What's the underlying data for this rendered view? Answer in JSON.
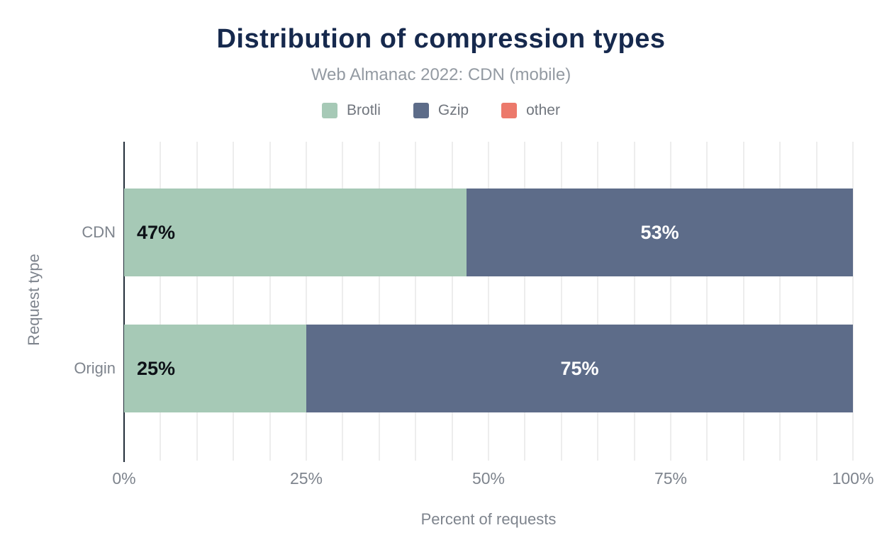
{
  "header": {
    "title": "Distribution of compression types",
    "subtitle": "Web Almanac 2022: CDN (mobile)"
  },
  "chart_data": {
    "type": "bar",
    "orientation": "horizontal",
    "stacked": true,
    "title": "Distribution of compression types",
    "subtitle": "Web Almanac 2022: CDN (mobile)",
    "categories": [
      "CDN",
      "Origin"
    ],
    "series": [
      {
        "name": "Brotli",
        "color": "#a6c9b6",
        "values": [
          47,
          25
        ],
        "label_color": "#0d1117",
        "label_align": "start"
      },
      {
        "name": "Gzip",
        "color": "#5d6c89",
        "values": [
          53,
          75
        ],
        "label_color": "#ffffff",
        "label_align": "center"
      },
      {
        "name": "other",
        "color": "#ec796b",
        "values": [
          0,
          0
        ],
        "label_color": "#ffffff",
        "label_align": "center"
      }
    ],
    "value_label_suffix": "%",
    "xlabel": "Percent of requests",
    "ylabel": "Request type",
    "xlim": [
      0,
      100
    ],
    "x_ticks": [
      {
        "value": 0,
        "label": "0%"
      },
      {
        "value": 25,
        "label": "25%"
      },
      {
        "value": 50,
        "label": "50%"
      },
      {
        "value": 75,
        "label": "75%"
      },
      {
        "value": 100,
        "label": "100%"
      }
    ],
    "grid": {
      "vertical": true,
      "step_percent": 5,
      "color": "#ededed"
    },
    "legend_position": "top",
    "legend": [
      "Brotli",
      "Gzip",
      "other"
    ]
  },
  "colors": {
    "title": "#16294d",
    "subtitle": "#939aa2",
    "axis_line": "#232e3a",
    "tick_text": "#7e848d",
    "background": "#ffffff"
  }
}
